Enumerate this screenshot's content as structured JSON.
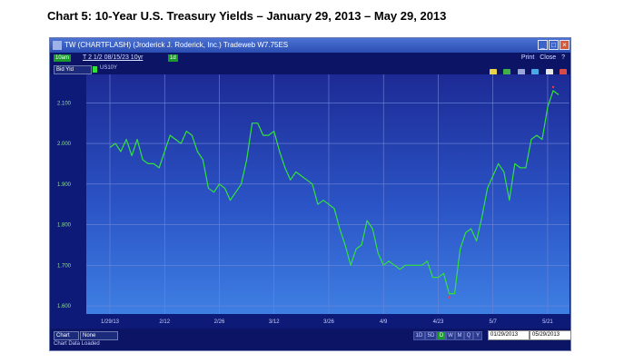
{
  "page_title": "Chart 5: 10-Year U.S. Treasury Yields – January 29, 2013 – May 29, 2013",
  "window": {
    "title": "TW  (CHARTFLASH) (Jroderick J. Roderick, Inc.) Tradeweb W7.75ES",
    "buttons": [
      "_",
      "□",
      "×"
    ]
  },
  "toolbar": {
    "time_tag": "10am",
    "symbol": "T 2 1/2 08/15/23 10yr",
    "interval_tag": "1d",
    "print_label": "Print",
    "close_label": "Close",
    "help_label": "?"
  },
  "series_bar": {
    "field_select": "Bid Yld",
    "series_label": "US10Y",
    "series_color": "#32e23a"
  },
  "statusbar": {
    "chart_label": "Chart",
    "overlay_label": "None",
    "periods": [
      "1D",
      "5D",
      "D",
      "W",
      "M",
      "Q",
      "Y"
    ],
    "active_period": "D",
    "start_date": "01/29/2013",
    "end_date": "05/29/2013",
    "status_text": "Chart Data Loaded"
  },
  "chart_data": {
    "type": "line",
    "title": "",
    "xlabel": "",
    "ylabel": "",
    "ylim": [
      1.58,
      2.17
    ],
    "yticks": [
      1.6,
      1.7,
      1.8,
      1.9,
      2.0,
      2.1
    ],
    "ytick_labels": [
      "1.600",
      "1.700",
      "1.800",
      "1.900",
      "2.000",
      "2.100"
    ],
    "xtick_labels": [
      "1/29/13",
      "2/12",
      "2/26",
      "3/12",
      "3/26",
      "4/9",
      "4/23",
      "5/7",
      "5/21"
    ],
    "grid": true,
    "series": [
      {
        "name": "US10Y",
        "color": "#32e23a",
        "values": [
          1.99,
          2.0,
          1.98,
          2.01,
          1.97,
          2.01,
          1.96,
          1.95,
          1.95,
          1.94,
          1.98,
          2.02,
          2.01,
          2.0,
          2.03,
          2.02,
          1.98,
          1.96,
          1.89,
          1.88,
          1.9,
          1.89,
          1.86,
          1.88,
          1.9,
          1.96,
          2.05,
          2.05,
          2.02,
          2.02,
          2.03,
          1.98,
          1.94,
          1.91,
          1.93,
          1.92,
          1.91,
          1.9,
          1.85,
          1.86,
          1.85,
          1.84,
          1.79,
          1.75,
          1.7,
          1.74,
          1.75,
          1.81,
          1.79,
          1.73,
          1.7,
          1.71,
          1.7,
          1.69,
          1.7,
          1.7,
          1.7,
          1.7,
          1.71,
          1.67,
          1.67,
          1.68,
          1.63,
          1.63,
          1.74,
          1.78,
          1.79,
          1.76,
          1.82,
          1.89,
          1.92,
          1.95,
          1.93,
          1.86,
          1.95,
          1.94,
          1.94,
          2.01,
          2.02,
          2.01,
          2.09,
          2.13,
          2.12
        ]
      }
    ]
  }
}
